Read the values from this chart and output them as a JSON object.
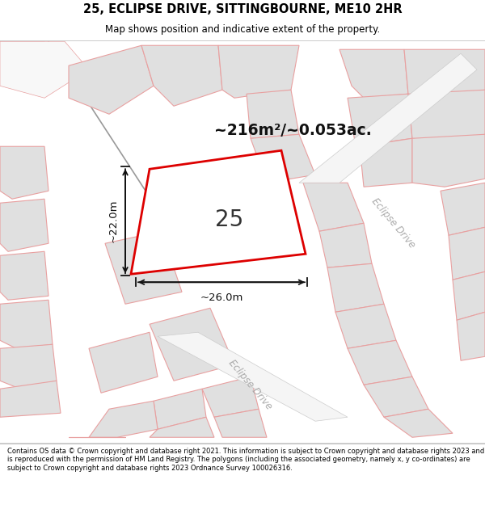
{
  "title_line1": "25, ECLIPSE DRIVE, SITTINGBOURNE, ME10 2HR",
  "title_line2": "Map shows position and indicative extent of the property.",
  "footer_text": "Contains OS data © Crown copyright and database right 2021. This information is subject to Crown copyright and database rights 2023 and is reproduced with the permission of HM Land Registry. The polygons (including the associated geometry, namely x, y co-ordinates) are subject to Crown copyright and database rights 2023 Ordnance Survey 100026316.",
  "area_text": "~216m²/~0.053ac.",
  "label_25": "25",
  "dim_width": "~26.0m",
  "dim_height": "~22.0m",
  "map_bg": "#ffffff",
  "plot_fill": "#e0e0e0",
  "plot_stroke": "#e8a0a0",
  "road_fill": "#f0f0f0",
  "road_stroke": "#d0b0b0",
  "highlight_color": "#dd0000",
  "header_bg": "#ffffff",
  "footer_bg": "#ffffff",
  "dim_color": "#111111",
  "label_color": "#333333",
  "area_color": "#111111",
  "road_label_color": "#aaaaaa",
  "diag_line_color": "#888888",
  "blue_patch": "#b8d8e8"
}
